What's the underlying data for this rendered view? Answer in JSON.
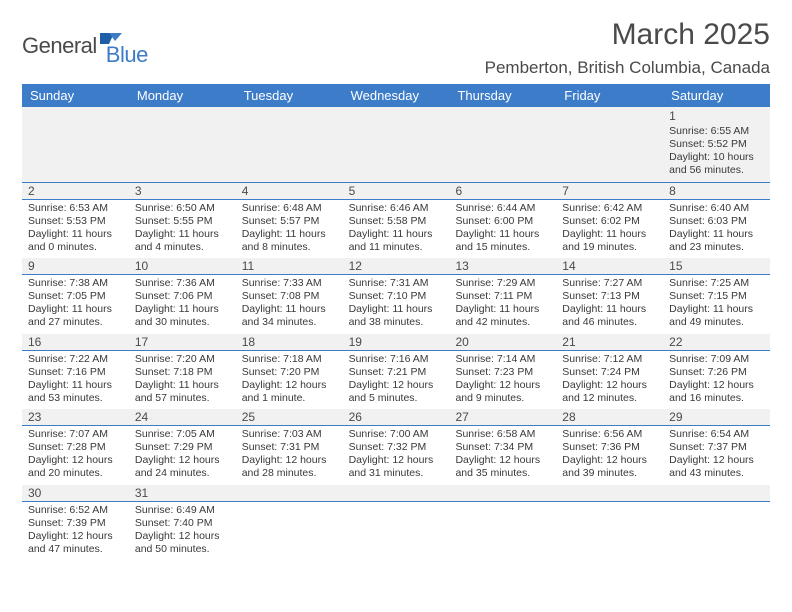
{
  "logo": {
    "part1": "General",
    "part2": "Blue",
    "flag_color": "#1e5fa8"
  },
  "title": "March 2025",
  "location": "Pemberton, British Columbia, Canada",
  "colors": {
    "header_bg": "#3d7cc9",
    "header_text": "#ffffff",
    "divider": "#3d7cc9",
    "daynum_bg": "#f1f1f1",
    "text": "#393939"
  },
  "day_headers": [
    "Sunday",
    "Monday",
    "Tuesday",
    "Wednesday",
    "Thursday",
    "Friday",
    "Saturday"
  ],
  "weeks": [
    {
      "days": [
        {
          "n": "",
          "lines": [
            "",
            "",
            "",
            ""
          ]
        },
        {
          "n": "",
          "lines": [
            "",
            "",
            "",
            ""
          ]
        },
        {
          "n": "",
          "lines": [
            "",
            "",
            "",
            ""
          ]
        },
        {
          "n": "",
          "lines": [
            "",
            "",
            "",
            ""
          ]
        },
        {
          "n": "",
          "lines": [
            "",
            "",
            "",
            ""
          ]
        },
        {
          "n": "",
          "lines": [
            "",
            "",
            "",
            ""
          ]
        },
        {
          "n": "1",
          "lines": [
            "Sunrise: 6:55 AM",
            "Sunset: 5:52 PM",
            "Daylight: 10 hours",
            "and 56 minutes."
          ]
        }
      ]
    },
    {
      "days": [
        {
          "n": "2",
          "lines": [
            "Sunrise: 6:53 AM",
            "Sunset: 5:53 PM",
            "Daylight: 11 hours",
            "and 0 minutes."
          ]
        },
        {
          "n": "3",
          "lines": [
            "Sunrise: 6:50 AM",
            "Sunset: 5:55 PM",
            "Daylight: 11 hours",
            "and 4 minutes."
          ]
        },
        {
          "n": "4",
          "lines": [
            "Sunrise: 6:48 AM",
            "Sunset: 5:57 PM",
            "Daylight: 11 hours",
            "and 8 minutes."
          ]
        },
        {
          "n": "5",
          "lines": [
            "Sunrise: 6:46 AM",
            "Sunset: 5:58 PM",
            "Daylight: 11 hours",
            "and 11 minutes."
          ]
        },
        {
          "n": "6",
          "lines": [
            "Sunrise: 6:44 AM",
            "Sunset: 6:00 PM",
            "Daylight: 11 hours",
            "and 15 minutes."
          ]
        },
        {
          "n": "7",
          "lines": [
            "Sunrise: 6:42 AM",
            "Sunset: 6:02 PM",
            "Daylight: 11 hours",
            "and 19 minutes."
          ]
        },
        {
          "n": "8",
          "lines": [
            "Sunrise: 6:40 AM",
            "Sunset: 6:03 PM",
            "Daylight: 11 hours",
            "and 23 minutes."
          ]
        }
      ]
    },
    {
      "days": [
        {
          "n": "9",
          "lines": [
            "Sunrise: 7:38 AM",
            "Sunset: 7:05 PM",
            "Daylight: 11 hours",
            "and 27 minutes."
          ]
        },
        {
          "n": "10",
          "lines": [
            "Sunrise: 7:36 AM",
            "Sunset: 7:06 PM",
            "Daylight: 11 hours",
            "and 30 minutes."
          ]
        },
        {
          "n": "11",
          "lines": [
            "Sunrise: 7:33 AM",
            "Sunset: 7:08 PM",
            "Daylight: 11 hours",
            "and 34 minutes."
          ]
        },
        {
          "n": "12",
          "lines": [
            "Sunrise: 7:31 AM",
            "Sunset: 7:10 PM",
            "Daylight: 11 hours",
            "and 38 minutes."
          ]
        },
        {
          "n": "13",
          "lines": [
            "Sunrise: 7:29 AM",
            "Sunset: 7:11 PM",
            "Daylight: 11 hours",
            "and 42 minutes."
          ]
        },
        {
          "n": "14",
          "lines": [
            "Sunrise: 7:27 AM",
            "Sunset: 7:13 PM",
            "Daylight: 11 hours",
            "and 46 minutes."
          ]
        },
        {
          "n": "15",
          "lines": [
            "Sunrise: 7:25 AM",
            "Sunset: 7:15 PM",
            "Daylight: 11 hours",
            "and 49 minutes."
          ]
        }
      ]
    },
    {
      "days": [
        {
          "n": "16",
          "lines": [
            "Sunrise: 7:22 AM",
            "Sunset: 7:16 PM",
            "Daylight: 11 hours",
            "and 53 minutes."
          ]
        },
        {
          "n": "17",
          "lines": [
            "Sunrise: 7:20 AM",
            "Sunset: 7:18 PM",
            "Daylight: 11 hours",
            "and 57 minutes."
          ]
        },
        {
          "n": "18",
          "lines": [
            "Sunrise: 7:18 AM",
            "Sunset: 7:20 PM",
            "Daylight: 12 hours",
            "and 1 minute."
          ]
        },
        {
          "n": "19",
          "lines": [
            "Sunrise: 7:16 AM",
            "Sunset: 7:21 PM",
            "Daylight: 12 hours",
            "and 5 minutes."
          ]
        },
        {
          "n": "20",
          "lines": [
            "Sunrise: 7:14 AM",
            "Sunset: 7:23 PM",
            "Daylight: 12 hours",
            "and 9 minutes."
          ]
        },
        {
          "n": "21",
          "lines": [
            "Sunrise: 7:12 AM",
            "Sunset: 7:24 PM",
            "Daylight: 12 hours",
            "and 12 minutes."
          ]
        },
        {
          "n": "22",
          "lines": [
            "Sunrise: 7:09 AM",
            "Sunset: 7:26 PM",
            "Daylight: 12 hours",
            "and 16 minutes."
          ]
        }
      ]
    },
    {
      "days": [
        {
          "n": "23",
          "lines": [
            "Sunrise: 7:07 AM",
            "Sunset: 7:28 PM",
            "Daylight: 12 hours",
            "and 20 minutes."
          ]
        },
        {
          "n": "24",
          "lines": [
            "Sunrise: 7:05 AM",
            "Sunset: 7:29 PM",
            "Daylight: 12 hours",
            "and 24 minutes."
          ]
        },
        {
          "n": "25",
          "lines": [
            "Sunrise: 7:03 AM",
            "Sunset: 7:31 PM",
            "Daylight: 12 hours",
            "and 28 minutes."
          ]
        },
        {
          "n": "26",
          "lines": [
            "Sunrise: 7:00 AM",
            "Sunset: 7:32 PM",
            "Daylight: 12 hours",
            "and 31 minutes."
          ]
        },
        {
          "n": "27",
          "lines": [
            "Sunrise: 6:58 AM",
            "Sunset: 7:34 PM",
            "Daylight: 12 hours",
            "and 35 minutes."
          ]
        },
        {
          "n": "28",
          "lines": [
            "Sunrise: 6:56 AM",
            "Sunset: 7:36 PM",
            "Daylight: 12 hours",
            "and 39 minutes."
          ]
        },
        {
          "n": "29",
          "lines": [
            "Sunrise: 6:54 AM",
            "Sunset: 7:37 PM",
            "Daylight: 12 hours",
            "and 43 minutes."
          ]
        }
      ]
    },
    {
      "days": [
        {
          "n": "30",
          "lines": [
            "Sunrise: 6:52 AM",
            "Sunset: 7:39 PM",
            "Daylight: 12 hours",
            "and 47 minutes."
          ]
        },
        {
          "n": "31",
          "lines": [
            "Sunrise: 6:49 AM",
            "Sunset: 7:40 PM",
            "Daylight: 12 hours",
            "and 50 minutes."
          ]
        },
        {
          "n": "",
          "lines": [
            "",
            "",
            "",
            ""
          ]
        },
        {
          "n": "",
          "lines": [
            "",
            "",
            "",
            ""
          ]
        },
        {
          "n": "",
          "lines": [
            "",
            "",
            "",
            ""
          ]
        },
        {
          "n": "",
          "lines": [
            "",
            "",
            "",
            ""
          ]
        },
        {
          "n": "",
          "lines": [
            "",
            "",
            "",
            ""
          ]
        }
      ]
    }
  ]
}
